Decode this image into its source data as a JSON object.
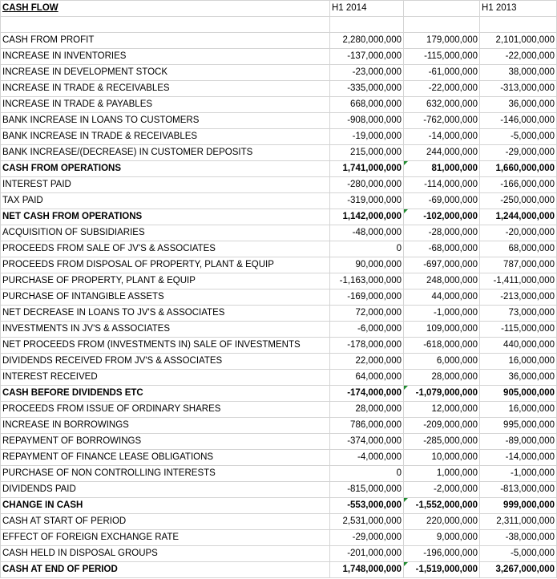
{
  "header": {
    "title": "CASH FLOW",
    "col1": "H1 2014",
    "col2": "",
    "col3": "H1 2013"
  },
  "rows": [
    {
      "label": "CASH FROM PROFIT",
      "h1_2014": "2,280,000,000",
      "change": "179,000,000",
      "h1_2013": "2,101,000,000"
    },
    {
      "label": "INCREASE IN INVENTORIES",
      "h1_2014": "-137,000,000",
      "change": "-115,000,000",
      "h1_2013": "-22,000,000"
    },
    {
      "label": "INCREASE IN DEVELOPMENT STOCK",
      "h1_2014": "-23,000,000",
      "change": "-61,000,000",
      "h1_2013": "38,000,000"
    },
    {
      "label": "INCREASE IN TRADE & RECEIVABLES",
      "h1_2014": "-335,000,000",
      "change": "-22,000,000",
      "h1_2013": "-313,000,000"
    },
    {
      "label": "INCREASE IN TRADE & PAYABLES",
      "h1_2014": "668,000,000",
      "change": "632,000,000",
      "h1_2013": "36,000,000"
    },
    {
      "label": "BANK INCREASE IN LOANS TO CUSTOMERS",
      "h1_2014": "-908,000,000",
      "change": "-762,000,000",
      "h1_2013": "-146,000,000"
    },
    {
      "label": "BANK INCREASE IN TRADE & RECEIVABLES",
      "h1_2014": "-19,000,000",
      "change": "-14,000,000",
      "h1_2013": "-5,000,000"
    },
    {
      "label": "BANK INCREASE/(DECREASE) IN CUSTOMER DEPOSITS",
      "h1_2014": "215,000,000",
      "change": "244,000,000",
      "h1_2013": "-29,000,000"
    },
    {
      "label": "CASH FROM OPERATIONS",
      "h1_2014": "1,741,000,000",
      "change": "81,000,000",
      "h1_2013": "1,660,000,000"
    },
    {
      "label": "INTEREST PAID",
      "h1_2014": "-280,000,000",
      "change": "-114,000,000",
      "h1_2013": "-166,000,000"
    },
    {
      "label": "TAX PAID",
      "h1_2014": "-319,000,000",
      "change": "-69,000,000",
      "h1_2013": "-250,000,000"
    },
    {
      "label": "NET CASH FROM OPERATIONS",
      "h1_2014": "1,142,000,000",
      "change": "-102,000,000",
      "h1_2013": "1,244,000,000"
    },
    {
      "label": "ACQUISITION OF SUBSIDIARIES",
      "h1_2014": "-48,000,000",
      "change": "-28,000,000",
      "h1_2013": "-20,000,000"
    },
    {
      "label": "PROCEEDS FROM SALE OF JV'S & ASSOCIATES",
      "h1_2014": "0",
      "change": "-68,000,000",
      "h1_2013": "68,000,000"
    },
    {
      "label": "PROCEEDS FROM DISPOSAL OF PROPERTY, PLANT & EQUIP",
      "h1_2014": "90,000,000",
      "change": "-697,000,000",
      "h1_2013": "787,000,000"
    },
    {
      "label": "PURCHASE OF PROPERTY, PLANT & EQUIP",
      "h1_2014": "-1,163,000,000",
      "change": "248,000,000",
      "h1_2013": "-1,411,000,000"
    },
    {
      "label": "PURCHASE OF INTANGIBLE ASSETS",
      "h1_2014": "-169,000,000",
      "change": "44,000,000",
      "h1_2013": "-213,000,000"
    },
    {
      "label": "NET DECREASE IN LOANS TO JV'S & ASSOCIATES",
      "h1_2014": "72,000,000",
      "change": "-1,000,000",
      "h1_2013": "73,000,000"
    },
    {
      "label": "INVESTMENTS IN JV'S & ASSOCIATES",
      "h1_2014": "-6,000,000",
      "change": "109,000,000",
      "h1_2013": "-115,000,000"
    },
    {
      "label": "NET PROCEEDS FROM (INVESTMENTS IN) SALE OF INVESTMENTS",
      "h1_2014": "-178,000,000",
      "change": "-618,000,000",
      "h1_2013": "440,000,000"
    },
    {
      "label": "DIVIDENDS RECEIVED FROM JV'S & ASSOCIATES",
      "h1_2014": "22,000,000",
      "change": "6,000,000",
      "h1_2013": "16,000,000"
    },
    {
      "label": "INTEREST RECEIVED",
      "h1_2014": "64,000,000",
      "change": "28,000,000",
      "h1_2013": "36,000,000"
    },
    {
      "label": "CASH BEFORE DIVIDENDS ETC",
      "h1_2014": "-174,000,000",
      "change": "-1,079,000,000",
      "h1_2013": "905,000,000"
    },
    {
      "label": "PROCEEDS FROM ISSUE OF ORDINARY SHARES",
      "h1_2014": "28,000,000",
      "change": "12,000,000",
      "h1_2013": "16,000,000"
    },
    {
      "label": "INCREASE IN BORROWINGS",
      "h1_2014": "786,000,000",
      "change": "-209,000,000",
      "h1_2013": "995,000,000"
    },
    {
      "label": "REPAYMENT OF BORROWINGS",
      "h1_2014": "-374,000,000",
      "change": "-285,000,000",
      "h1_2013": "-89,000,000"
    },
    {
      "label": "REPAYMENT OF FINANCE LEASE OBLIGATIONS",
      "h1_2014": "-4,000,000",
      "change": "10,000,000",
      "h1_2013": "-14,000,000"
    },
    {
      "label": "PURCHASE OF NON CONTROLLING INTERESTS",
      "h1_2014": "0",
      "change": "1,000,000",
      "h1_2013": "-1,000,000"
    },
    {
      "label": "DIVIDENDS PAID",
      "h1_2014": "-815,000,000",
      "change": "-2,000,000",
      "h1_2013": "-813,000,000"
    },
    {
      "label": "CHANGE IN CASH",
      "h1_2014": "-553,000,000",
      "change": "-1,552,000,000",
      "h1_2013": "999,000,000"
    },
    {
      "label": "CASH AT START OF PERIOD",
      "h1_2014": "2,531,000,000",
      "change": "220,000,000",
      "h1_2013": "2,311,000,000"
    },
    {
      "label": "EFFECT OF FOREIGN EXCHANGE RATE",
      "h1_2014": "-29,000,000",
      "change": "9,000,000",
      "h1_2013": "-38,000,000"
    },
    {
      "label": "CASH HELD IN DISPOSAL GROUPS",
      "h1_2014": "-201,000,000",
      "change": "-196,000,000",
      "h1_2013": "-5,000,000"
    },
    {
      "label": "CASH AT END OF PERIOD",
      "h1_2014": "1,748,000,000",
      "change": "-1,519,000,000",
      "h1_2013": "3,267,000,000"
    }
  ],
  "colors": {
    "positive_change": "#002b9e",
    "negative_change": "#a31010",
    "gridline": "#d4d4d4",
    "comment_flag": "#1e8a2e"
  }
}
